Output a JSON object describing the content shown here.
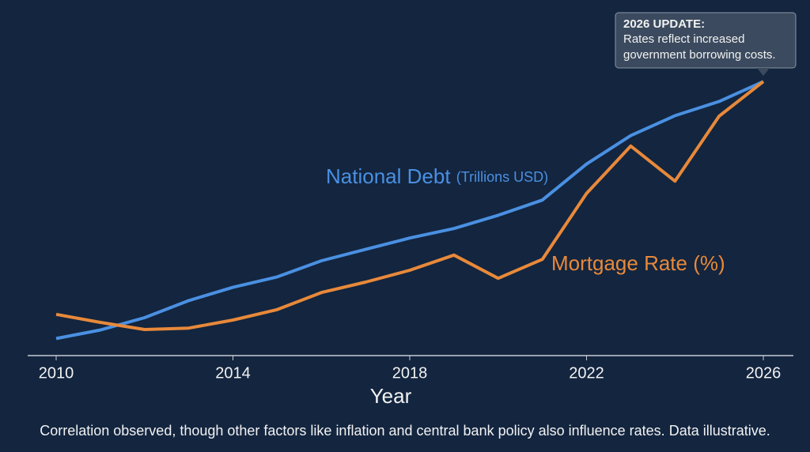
{
  "chart_data": {
    "type": "line",
    "x": [
      2010,
      2011,
      2012,
      2013,
      2014,
      2015,
      2016,
      2017,
      2018,
      2019,
      2020,
      2021,
      2022,
      2023,
      2024,
      2025,
      2026
    ],
    "series": [
      {
        "name": "National Debt",
        "unit": "(Trillions USD)",
        "color": "#4a90e2",
        "values": [
          11.8,
          12.7,
          14.0,
          15.8,
          17.2,
          18.3,
          20.0,
          21.2,
          22.4,
          23.4,
          24.8,
          26.4,
          30.2,
          33.2,
          35.3,
          36.8,
          38.9
        ]
      },
      {
        "name": "Mortgage Rate (%)",
        "color": "#e8893a",
        "axis": "y2",
        "values": [
          2.87,
          2.7,
          2.55,
          2.58,
          2.75,
          2.97,
          3.33,
          3.55,
          3.8,
          4.12,
          3.63,
          4.03,
          5.42,
          6.42,
          5.68,
          7.05,
          7.78
        ]
      }
    ],
    "xlim": [
      2010,
      2026
    ],
    "xticks": [
      2010,
      2014,
      2018,
      2022,
      2026
    ],
    "ylim": [
      10,
      40
    ],
    "y2lim": [
      2,
      8
    ],
    "xlabel": "Year",
    "annotation": {
      "title": "2026 UPDATE:",
      "lines": [
        "Rates reflect increased",
        "government borrowing costs."
      ]
    },
    "footnote": "Correlation observed, though other factors like inflation and central bank policy also influence rates. Data illustrative."
  }
}
